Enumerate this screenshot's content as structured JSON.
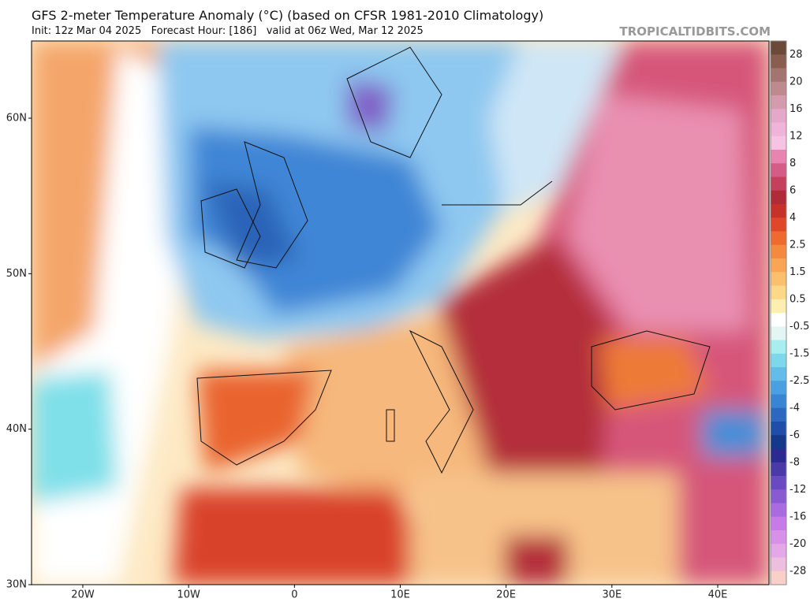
{
  "header": {
    "title": "GFS 2-meter Temperature Anomaly (°C) (based on CFSR 1981-2010 Climatology)",
    "init": "Init: 12z Mar 04 2025",
    "forecast_hour": "Forecast Hour: [186]",
    "valid": "valid at 06z Wed, Mar 12 2025",
    "credit": "TROPICALTIDBITS.COM"
  },
  "map": {
    "lat_labels": [
      "60N",
      "50N",
      "40N",
      "30N"
    ],
    "lon_labels": [
      "20W",
      "10W",
      "0",
      "10E",
      "20E",
      "30E",
      "40E"
    ]
  },
  "colorbar": {
    "labels": [
      28,
      20,
      16,
      12,
      8,
      6,
      4,
      2.5,
      1.5,
      0.5,
      -0.5,
      -1.5,
      -2.5,
      -4,
      -6,
      -8,
      -12,
      -16,
      -20,
      -28
    ]
  }
}
